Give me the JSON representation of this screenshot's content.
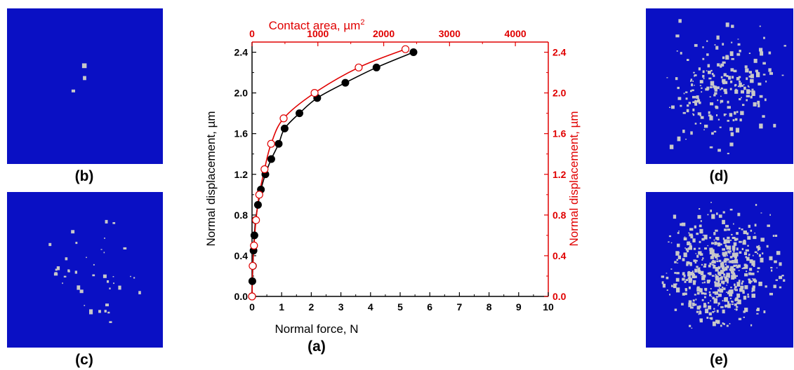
{
  "panels": [
    {
      "id": "b",
      "caption": "(b)",
      "density": 3
    },
    {
      "id": "c",
      "caption": "(c)",
      "density": 40
    },
    {
      "id": "d",
      "caption": "(d)",
      "density": 220
    },
    {
      "id": "e",
      "caption": "(e)",
      "density": 520
    }
  ],
  "colors": {
    "map_bg": "#0a10c4",
    "grain": "#c8c8c8",
    "force_series": "#000000",
    "area_series": "#e00000"
  },
  "chart_data": {
    "type": "scatter",
    "caption": "(a)",
    "xlabel": "Normal force, N",
    "ylabel_left": "Normal displacement, µm",
    "ylabel_right": "Normal displacement, µm",
    "x2label_prefix": "Contact area, µm",
    "x2label_sup": "2",
    "xlim": [
      0,
      10
    ],
    "x2lim": [
      0,
      4500
    ],
    "ylim": [
      0,
      2.5
    ],
    "x_ticks": [
      "0",
      "1",
      "2",
      "3",
      "4",
      "5",
      "6",
      "7",
      "8",
      "9",
      "10"
    ],
    "x2_ticks": [
      "0",
      "1000",
      "2000",
      "3000",
      "4000"
    ],
    "y_ticks": [
      "0.0",
      "0.4",
      "0.8",
      "1.2",
      "1.6",
      "2.0",
      "2.4"
    ],
    "series": [
      {
        "axis": "bottom",
        "marker": "filled-circle",
        "x": [
          0.0,
          0.01,
          0.03,
          0.05,
          0.08,
          0.12,
          0.2,
          0.3,
          0.45,
          0.65,
          0.9,
          1.1,
          1.6,
          2.2,
          3.15,
          4.2,
          5.45
        ],
        "y": [
          0.0,
          0.15,
          0.3,
          0.45,
          0.6,
          0.75,
          0.9,
          1.05,
          1.2,
          1.35,
          1.5,
          1.65,
          1.8,
          1.95,
          2.1,
          2.25,
          2.4
        ]
      },
      {
        "axis": "top",
        "marker": "open-circle",
        "x": [
          0,
          10,
          30,
          60,
          110,
          190,
          290,
          480,
          950,
          1620,
          2330
        ],
        "y": [
          0.0,
          0.3,
          0.5,
          0.75,
          1.0,
          1.25,
          1.5,
          1.75,
          2.0,
          2.25,
          2.43
        ]
      }
    ]
  }
}
